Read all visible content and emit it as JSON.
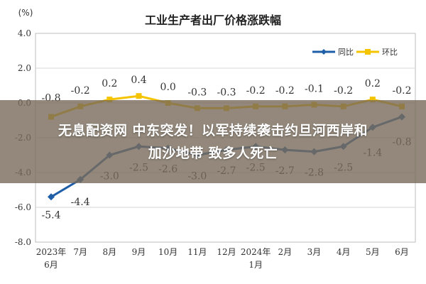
{
  "chart_data": {
    "type": "line",
    "title": "工业生产者出厂价格涨跌幅",
    "unit": "(%)",
    "ylim": [
      -8.0,
      4.0
    ],
    "yticks": [
      "4.0",
      "2.0",
      "0.0",
      "-2.0",
      "-4.0",
      "-6.0",
      "-8.0"
    ],
    "categories": [
      [
        "2023年",
        "6月"
      ],
      [
        "7月"
      ],
      [
        "8月"
      ],
      [
        "9月"
      ],
      [
        "10月"
      ],
      [
        "11月"
      ],
      [
        "12月"
      ],
      [
        "2024年",
        "1月"
      ],
      [
        "2月"
      ],
      [
        "3月"
      ],
      [
        "4月"
      ],
      [
        "5月"
      ],
      [
        "6月"
      ]
    ],
    "grid": true,
    "legend": "top-right",
    "series": [
      {
        "name": "同比",
        "color": "#1f5fa8",
        "values": [
          -5.4,
          -4.4,
          -3.0,
          -2.5,
          -2.6,
          -3.0,
          -2.7,
          -2.5,
          -2.7,
          -2.8,
          -2.5,
          -1.4,
          -0.8
        ],
        "labels": [
          "-5.4",
          "-4.4",
          "-3.0",
          "-2.5",
          "-2.6",
          "-3.0",
          "-2.7",
          "-2.5",
          "-2.7",
          "-2.8",
          "-2.5",
          "-1.4",
          "-0.8"
        ]
      },
      {
        "name": "环比",
        "color": "#f5c400",
        "values": [
          -0.8,
          -0.2,
          0.2,
          0.4,
          0.0,
          -0.3,
          -0.3,
          -0.2,
          -0.2,
          -0.1,
          -0.2,
          0.2,
          -0.2
        ],
        "labels": [
          "-0.8",
          "-0.2",
          "0.2",
          "0.4",
          "0.0",
          "-0.3",
          "-0.3",
          "-0.2",
          "-0.2",
          "-0.1",
          "-0.2",
          "0.2",
          "-0.2"
        ]
      }
    ]
  },
  "banner": {
    "line1": "无息配资网 中东突发！以军持续袭击约旦河西岸和",
    "line2": "加沙地带 致多人死亡"
  }
}
